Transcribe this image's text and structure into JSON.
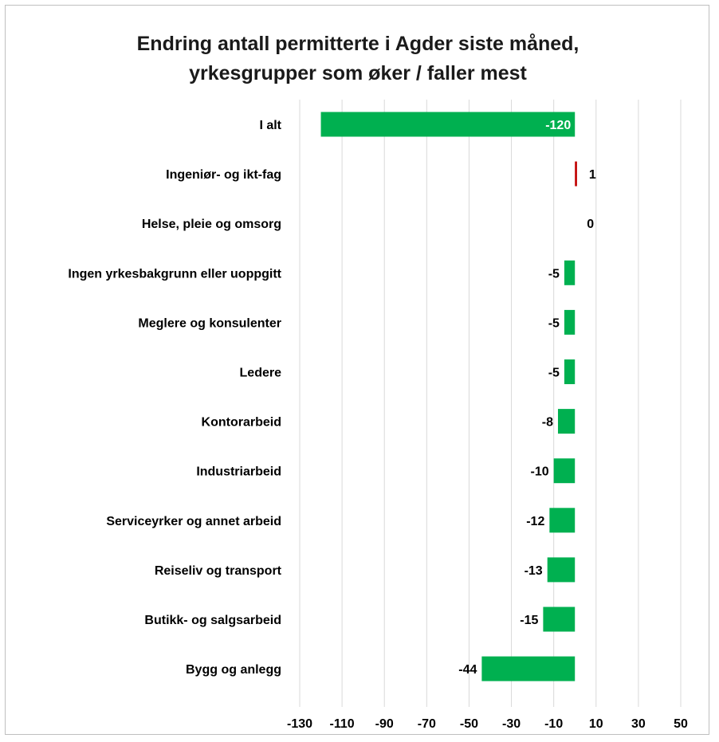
{
  "chart_data": {
    "type": "bar",
    "orientation": "horizontal",
    "title_lines": [
      "Endring antall permitterte i Agder siste måned,",
      "yrkesgrupper som øker / faller mest"
    ],
    "categories": [
      "I alt",
      "Ingeniør- og ikt-fag",
      "Helse, pleie og omsorg",
      "Ingen yrkesbakgrunn eller uoppgitt",
      "Meglere og konsulenter",
      "Ledere",
      "Kontorarbeid",
      "Industriarbeid",
      "Serviceyrker og annet arbeid",
      "Reiseliv og transport",
      "Butikk- og salgsarbeid",
      "Bygg og anlegg"
    ],
    "values": [
      -120,
      1,
      0,
      -5,
      -5,
      -5,
      -8,
      -10,
      -12,
      -13,
      -15,
      -44
    ],
    "xlim": [
      -130,
      50
    ],
    "x_ticks": [
      -130,
      -110,
      -90,
      -70,
      -50,
      -30,
      -10,
      10,
      30,
      50
    ],
    "grid": "vertical",
    "legend": "none",
    "colors": {
      "negative": "#00b050",
      "positive": "#c00000",
      "grid": "#d9d9d9",
      "inside_label": "#ffffff",
      "outside_label": "#000000"
    }
  }
}
